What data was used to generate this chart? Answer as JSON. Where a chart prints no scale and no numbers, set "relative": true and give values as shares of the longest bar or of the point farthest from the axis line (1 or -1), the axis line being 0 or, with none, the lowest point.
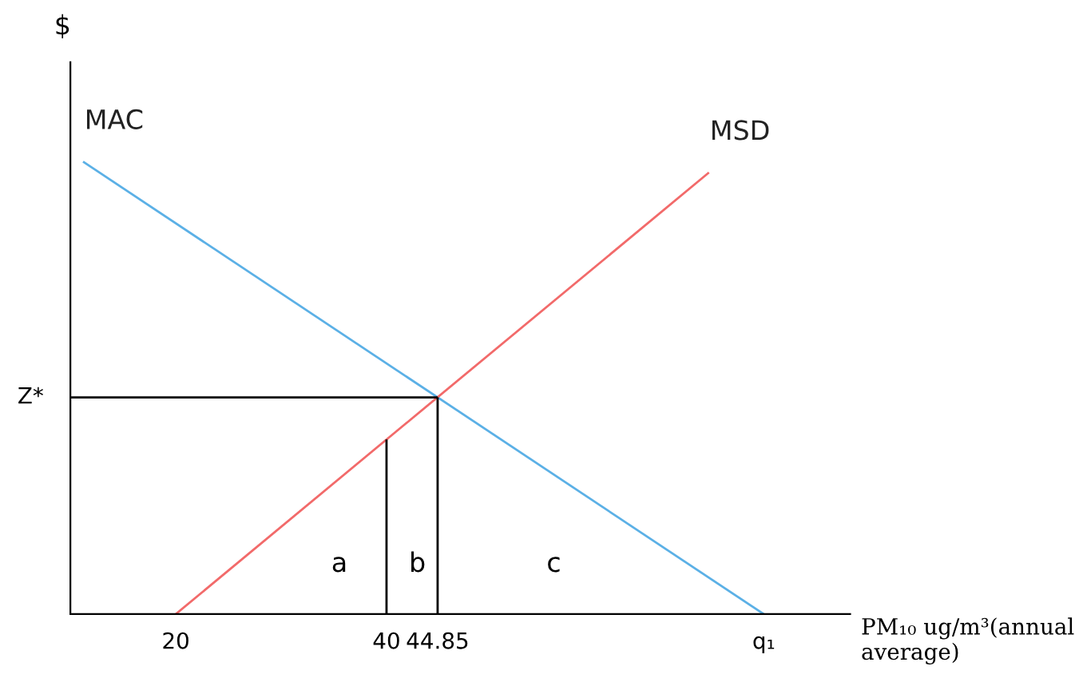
{
  "chart_data": {
    "type": "line",
    "relative": true,
    "ylabel": "$",
    "xlabel": "PM₁₀ ug/m³(annual average)",
    "xlim": [
      10,
      84
    ],
    "xticks": [
      20,
      40,
      44.85,
      {
        "value": 75.8,
        "label": "q₁"
      }
    ],
    "tick_labels": "x",
    "grid": false,
    "legend": false,
    "marker": "none",
    "line_style": "solid",
    "series": [
      {
        "name": "MAC",
        "color": "#5bb0e6",
        "x": [
          11.2,
          75.8
        ],
        "values": [
          1,
          0
        ]
      },
      {
        "name": "MSD",
        "color": "#f26a6a",
        "x": [
          20,
          70.6
        ],
        "values": [
          0,
          0.976
        ]
      },
      {
        "color": "#000000",
        "x": [
          10,
          44.85
        ],
        "values": [
          0.479,
          0.479
        ]
      },
      {
        "color": "#000000",
        "x": [
          44.85,
          44.85
        ],
        "values": [
          0,
          0.479
        ]
      },
      {
        "color": "#000000",
        "x": [
          40,
          40
        ],
        "values": [
          0,
          0.386
        ]
      }
    ],
    "annotations": [
      {
        "text": "Z*",
        "x": 10,
        "y": 0.479
      },
      "a",
      "b",
      "c"
    ]
  }
}
